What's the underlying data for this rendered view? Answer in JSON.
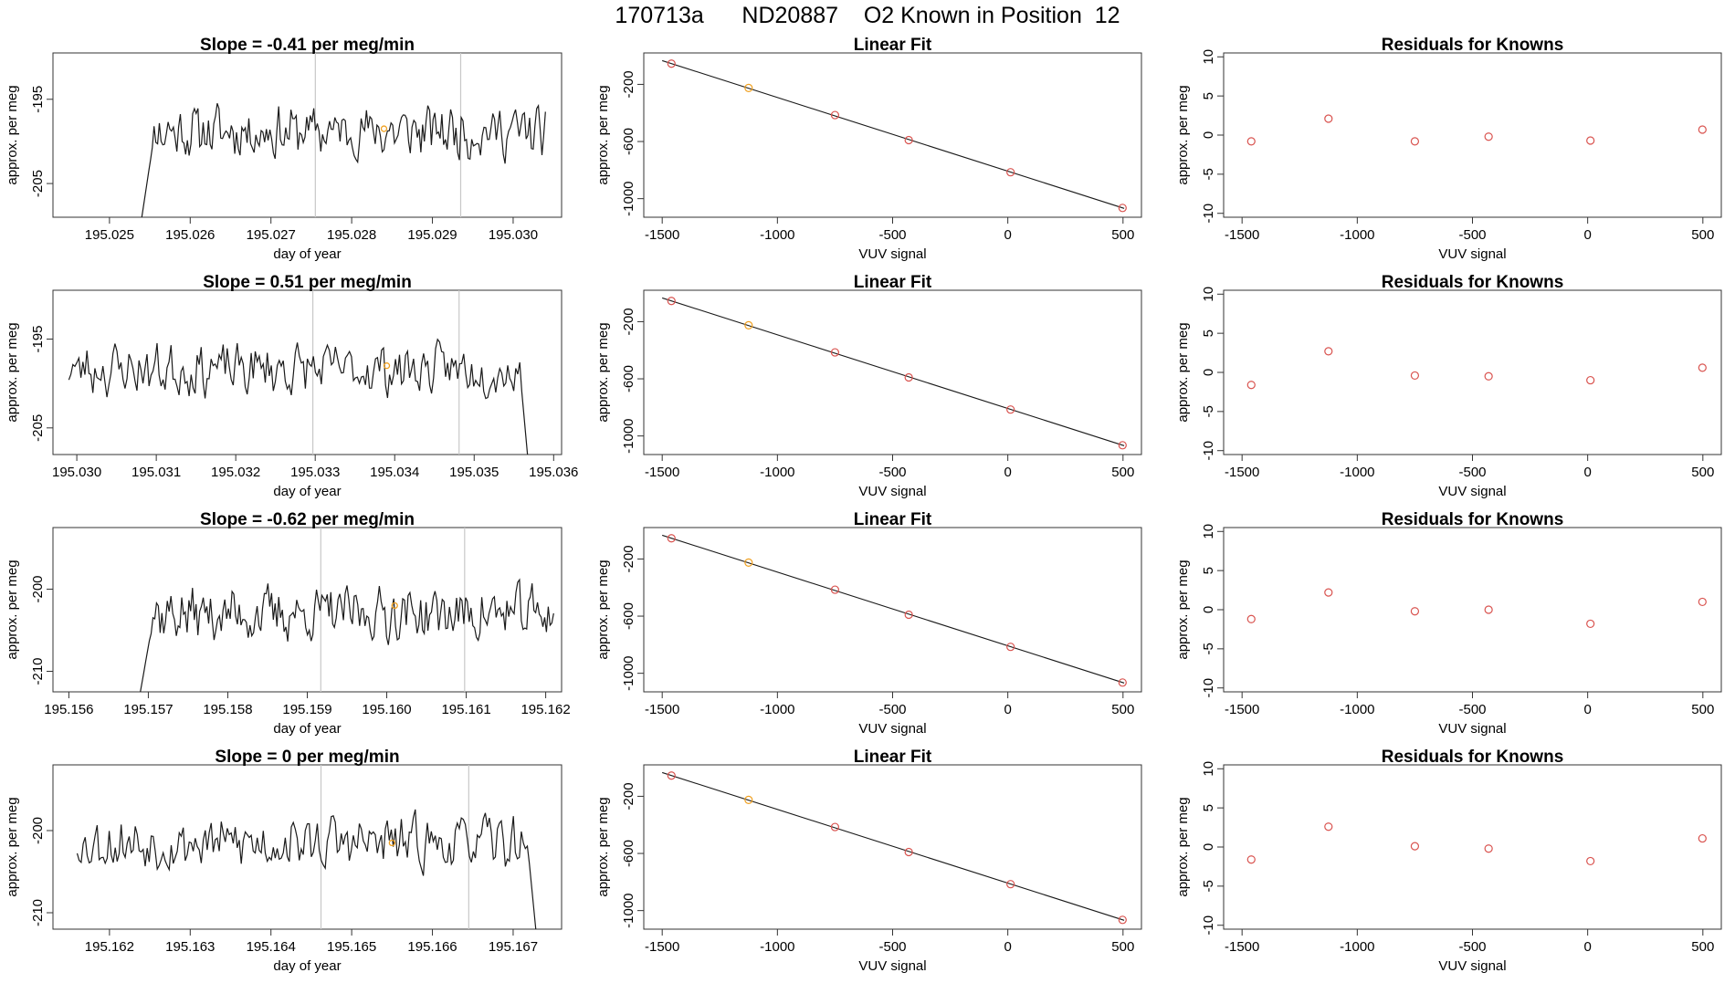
{
  "page": {
    "title": "170713a      ND20887    O2 Known in Position  12"
  },
  "chart_data": [
    {
      "id": "r1-ts",
      "type": "line",
      "title": "Slope =  -0.41  per meg/min",
      "xlabel": "day of year",
      "ylabel": "approx. per meg",
      "xlim": [
        195.0243,
        195.0306
      ],
      "ylim": [
        -209.0,
        -189.5
      ],
      "xticks": [
        195.025,
        195.026,
        195.027,
        195.028,
        195.029,
        195.03
      ],
      "xtick_labels": [
        "195.025",
        "195.026",
        "195.027",
        "195.028",
        "195.029",
        "195.030"
      ],
      "yticks": [
        -205,
        -195
      ],
      "ytick_labels": [
        "-205",
        "-195"
      ],
      "x_start": 195.0254,
      "x_end": 195.0304,
      "y_center": -198.8,
      "y_amp": 2.8,
      "seed": 11,
      "gaps_start": true,
      "vlines": [
        195.02755,
        195.02935
      ],
      "marker": {
        "x": 195.0284,
        "y": -198.5
      }
    },
    {
      "id": "r1-fit",
      "type": "scatter",
      "title": "Linear Fit",
      "xlabel": "VUV signal",
      "ylabel": "approx. per meg",
      "xlim": [
        -1580,
        580
      ],
      "ylim": [
        -1130,
        20
      ],
      "xticks": [
        -1500,
        -1000,
        -500,
        0,
        500
      ],
      "xtick_labels": [
        "-1500",
        "-1000",
        "-500",
        "0",
        "500"
      ],
      "yticks": [
        -1000,
        -600,
        -200
      ],
      "ytick_labels": [
        "-1000",
        "-600",
        "-200"
      ],
      "x": [
        -1460,
        -1125,
        -750,
        -430,
        12,
        498
      ],
      "y": [
        -55,
        -225,
        -415,
        -590,
        -815,
        -1065
      ],
      "highlight_index": 1,
      "fit_line": {
        "x": [
          -1500,
          505
        ],
        "y": [
          -34,
          -1068
        ]
      }
    },
    {
      "id": "r1-res",
      "type": "scatter",
      "title": "Residuals for Knowns",
      "xlabel": "VUV signal",
      "ylabel": "approx. per meg",
      "xlim": [
        -1580,
        580
      ],
      "ylim": [
        -10.5,
        10.5
      ],
      "xticks": [
        -1500,
        -1000,
        -500,
        0,
        500
      ],
      "xtick_labels": [
        "-1500",
        "-1000",
        "-500",
        "0",
        "500"
      ],
      "yticks": [
        -10,
        -5,
        0,
        5,
        10
      ],
      "ytick_labels": [
        "-10",
        "-5",
        "0",
        "5",
        "10"
      ],
      "x": [
        -1460,
        -1125,
        -750,
        -430,
        12,
        498
      ],
      "y": [
        -0.8,
        2.1,
        -0.8,
        -0.2,
        -0.7,
        0.7
      ]
    },
    {
      "id": "r2-ts",
      "type": "line",
      "title": "Slope =  0.51  per meg/min",
      "xlabel": "day of year",
      "ylabel": "approx. per meg",
      "xlim": [
        195.0297,
        195.0361
      ],
      "ylim": [
        -208.0,
        -189.5
      ],
      "xticks": [
        195.03,
        195.031,
        195.032,
        195.033,
        195.034,
        195.035,
        195.036
      ],
      "xtick_labels": [
        "195.030",
        "195.031",
        "195.032",
        "195.033",
        "195.034",
        "195.035",
        "195.036"
      ],
      "yticks": [
        -205,
        -195
      ],
      "ytick_labels": [
        "-205",
        "-195"
      ],
      "x_start": 195.0299,
      "x_end": 195.0357,
      "y_center": -198.4,
      "y_amp": 2.6,
      "seed": 23,
      "drop_end": true,
      "vlines": [
        195.03297,
        195.03481
      ],
      "marker": {
        "x": 195.0339,
        "y": -198.0
      }
    },
    {
      "id": "r2-fit",
      "type": "scatter",
      "title": "Linear Fit",
      "xlabel": "VUV signal",
      "ylabel": "approx. per meg",
      "xlim": [
        -1580,
        580
      ],
      "ylim": [
        -1130,
        20
      ],
      "xticks": [
        -1500,
        -1000,
        -500,
        0,
        500
      ],
      "xtick_labels": [
        "-1500",
        "-1000",
        "-500",
        "0",
        "500"
      ],
      "yticks": [
        -1000,
        -600,
        -200
      ],
      "ytick_labels": [
        "-1000",
        "-600",
        "-200"
      ],
      "x": [
        -1460,
        -1125,
        -750,
        -430,
        12,
        498
      ],
      "y": [
        -55,
        -225,
        -415,
        -590,
        -815,
        -1065
      ],
      "highlight_index": 1,
      "fit_line": {
        "x": [
          -1500,
          505
        ],
        "y": [
          -34,
          -1068
        ]
      }
    },
    {
      "id": "r2-res",
      "type": "scatter",
      "title": "Residuals for Knowns",
      "xlabel": "VUV signal",
      "ylabel": "approx. per meg",
      "xlim": [
        -1580,
        580
      ],
      "ylim": [
        -10.5,
        10.5
      ],
      "xticks": [
        -1500,
        -1000,
        -500,
        0,
        500
      ],
      "xtick_labels": [
        "-1500",
        "-1000",
        "-500",
        "0",
        "500"
      ],
      "yticks": [
        -10,
        -5,
        0,
        5,
        10
      ],
      "ytick_labels": [
        "-10",
        "-5",
        "0",
        "5",
        "10"
      ],
      "x": [
        -1460,
        -1125,
        -750,
        -430,
        12,
        498
      ],
      "y": [
        -1.6,
        2.7,
        -0.4,
        -0.5,
        -1.0,
        0.6
      ]
    },
    {
      "id": "r3-ts",
      "type": "line",
      "title": "Slope =  -0.62  per meg/min",
      "xlabel": "day of year",
      "ylabel": "approx. per meg",
      "xlim": [
        195.1558,
        195.1622
      ],
      "ylim": [
        -212.5,
        -192.5
      ],
      "xticks": [
        195.156,
        195.157,
        195.158,
        195.159,
        195.16,
        195.161,
        195.162
      ],
      "xtick_labels": [
        "195.156",
        "195.157",
        "195.158",
        "195.159",
        "195.160",
        "195.161",
        "195.162"
      ],
      "yticks": [
        -210,
        -200
      ],
      "ytick_labels": [
        "-210",
        "-200"
      ],
      "x_start": 195.1569,
      "x_end": 195.1621,
      "y_center": -203.0,
      "y_amp": 3.0,
      "seed": 37,
      "gaps_start": true,
      "vlines": [
        195.15917,
        195.16098
      ],
      "marker": {
        "x": 195.1601,
        "y": -202.0
      }
    },
    {
      "id": "r3-fit",
      "type": "scatter",
      "title": "Linear Fit",
      "xlabel": "VUV signal",
      "ylabel": "approx. per meg",
      "xlim": [
        -1580,
        580
      ],
      "ylim": [
        -1130,
        20
      ],
      "xticks": [
        -1500,
        -1000,
        -500,
        0,
        500
      ],
      "xtick_labels": [
        "-1500",
        "-1000",
        "-500",
        "0",
        "500"
      ],
      "yticks": [
        -1000,
        -600,
        -200
      ],
      "ytick_labels": [
        "-1000",
        "-600",
        "-200"
      ],
      "x": [
        -1460,
        -1125,
        -750,
        -430,
        12,
        498
      ],
      "y": [
        -55,
        -225,
        -415,
        -590,
        -815,
        -1065
      ],
      "highlight_index": 1,
      "fit_line": {
        "x": [
          -1500,
          505
        ],
        "y": [
          -34,
          -1068
        ]
      }
    },
    {
      "id": "r3-res",
      "type": "scatter",
      "title": "Residuals for Knowns",
      "xlabel": "VUV signal",
      "ylabel": "approx. per meg",
      "xlim": [
        -1580,
        580
      ],
      "ylim": [
        -10.5,
        10.5
      ],
      "xticks": [
        -1500,
        -1000,
        -500,
        0,
        500
      ],
      "xtick_labels": [
        "-1500",
        "-1000",
        "-500",
        "0",
        "500"
      ],
      "yticks": [
        -10,
        -5,
        0,
        5,
        10
      ],
      "ytick_labels": [
        "-10",
        "-5",
        "0",
        "5",
        "10"
      ],
      "x": [
        -1460,
        -1125,
        -750,
        -430,
        12,
        498
      ],
      "y": [
        -1.2,
        2.2,
        -0.2,
        0.0,
        -1.8,
        1.0
      ]
    },
    {
      "id": "r4-ts",
      "type": "line",
      "title": "Slope =  0  per meg/min",
      "xlabel": "day of year",
      "ylabel": "approx. per meg",
      "xlim": [
        195.1613,
        195.1676
      ],
      "ylim": [
        -212.0,
        -192.0
      ],
      "xticks": [
        195.162,
        195.163,
        195.164,
        195.165,
        195.166,
        195.167
      ],
      "xtick_labels": [
        "195.162",
        "195.163",
        "195.164",
        "195.165",
        "195.166",
        "195.167"
      ],
      "yticks": [
        -210,
        -200
      ],
      "ytick_labels": [
        "-210",
        "-200"
      ],
      "x_start": 195.1616,
      "x_end": 195.1673,
      "y_center": -201.5,
      "y_amp": 2.9,
      "seed": 53,
      "drop_end": true,
      "vlines": [
        195.16462,
        195.16645
      ],
      "marker": {
        "x": 195.1655,
        "y": -201.5
      }
    },
    {
      "id": "r4-fit",
      "type": "scatter",
      "title": "Linear Fit",
      "xlabel": "VUV signal",
      "ylabel": "approx. per meg",
      "xlim": [
        -1580,
        580
      ],
      "ylim": [
        -1130,
        20
      ],
      "xticks": [
        -1500,
        -1000,
        -500,
        0,
        500
      ],
      "xtick_labels": [
        "-1500",
        "-1000",
        "-500",
        "0",
        "500"
      ],
      "yticks": [
        -1000,
        -600,
        -200
      ],
      "ytick_labels": [
        "-1000",
        "-600",
        "-200"
      ],
      "x": [
        -1460,
        -1125,
        -750,
        -430,
        12,
        498
      ],
      "y": [
        -55,
        -225,
        -415,
        -590,
        -815,
        -1065
      ],
      "highlight_index": 1,
      "fit_line": {
        "x": [
          -1500,
          505
        ],
        "y": [
          -34,
          -1068
        ]
      }
    },
    {
      "id": "r4-res",
      "type": "scatter",
      "title": "Residuals for Knowns",
      "xlabel": "VUV signal",
      "ylabel": "approx. per meg",
      "xlim": [
        -1580,
        580
      ],
      "ylim": [
        -10.5,
        10.5
      ],
      "xticks": [
        -1500,
        -1000,
        -500,
        0,
        500
      ],
      "xtick_labels": [
        "-1500",
        "-1000",
        "-500",
        "0",
        "500"
      ],
      "yticks": [
        -10,
        -5,
        0,
        5,
        10
      ],
      "ytick_labels": [
        "-10",
        "-5",
        "0",
        "5",
        "10"
      ],
      "x": [
        -1460,
        -1125,
        -750,
        -430,
        12,
        498
      ],
      "y": [
        -1.6,
        2.6,
        0.1,
        -0.2,
        -1.8,
        1.1
      ]
    }
  ],
  "colors": {
    "line": "#1a1a1a",
    "axis": "#333333",
    "vline": "#c8c8c8",
    "point_red": "#d9534f",
    "point_orange": "#f0a020"
  }
}
